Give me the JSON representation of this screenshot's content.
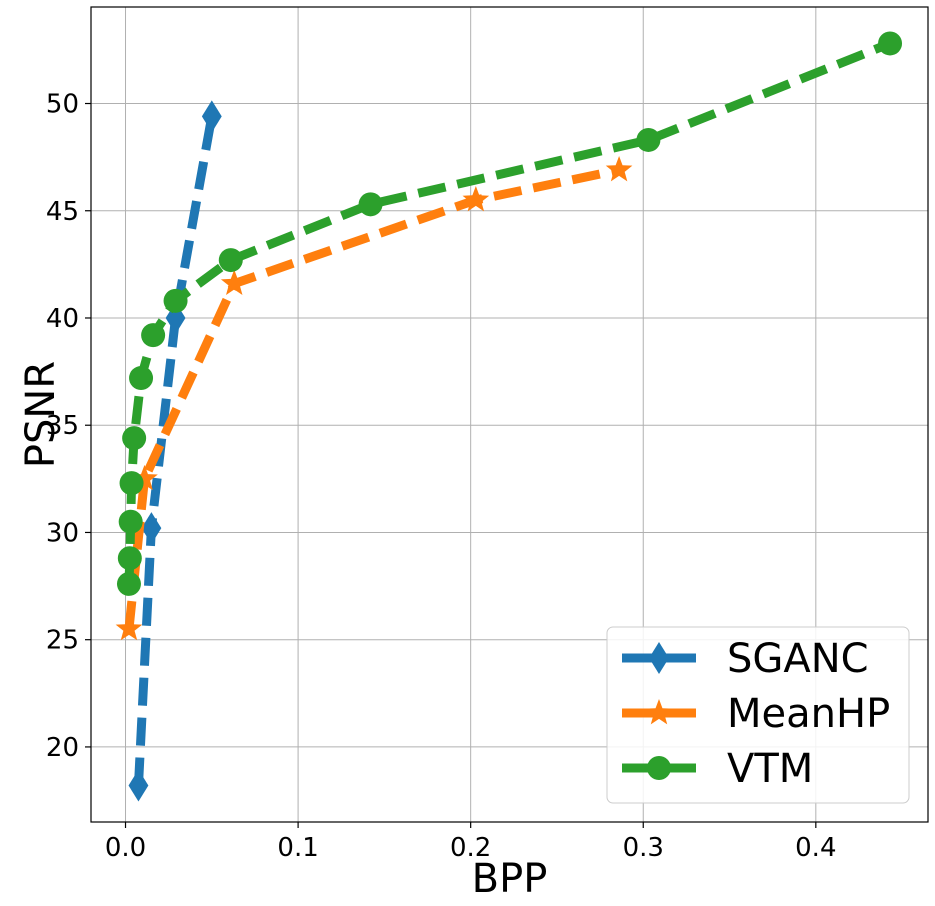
{
  "chart_data": {
    "type": "line",
    "xlabel": "BPP",
    "ylabel": "PSNR",
    "xlim": [
      -0.02,
      0.465
    ],
    "ylim": [
      16.5,
      54.5
    ],
    "xticks": [
      0.0,
      0.1,
      0.2,
      0.3,
      0.4
    ],
    "xtick_labels": [
      "0.0",
      "0.1",
      "0.2",
      "0.3",
      "0.4"
    ],
    "yticks": [
      20,
      25,
      30,
      35,
      40,
      45,
      50
    ],
    "ytick_labels": [
      "20",
      "25",
      "30",
      "35",
      "40",
      "45",
      "50"
    ],
    "grid": true,
    "legend_position": "bottom-right",
    "series": [
      {
        "name": "SGANC",
        "color": "#1f77b4",
        "marker": "diamond",
        "x": [
          0.0075,
          0.015,
          0.029,
          0.05
        ],
        "y": [
          18.2,
          30.2,
          40.0,
          49.4
        ]
      },
      {
        "name": "MeanHP",
        "color": "#ff7f0e",
        "marker": "star",
        "x": [
          0.002,
          0.011,
          0.063,
          0.203,
          0.286
        ],
        "y": [
          25.5,
          32.5,
          41.6,
          45.5,
          46.9
        ]
      },
      {
        "name": "VTM",
        "color": "#2ca02c",
        "marker": "circle",
        "x": [
          0.002,
          0.0025,
          0.003,
          0.0035,
          0.005,
          0.009,
          0.016,
          0.029,
          0.061,
          0.142,
          0.303,
          0.443
        ],
        "y": [
          27.6,
          28.8,
          30.5,
          32.3,
          34.4,
          37.2,
          39.2,
          40.8,
          42.7,
          45.3,
          48.3,
          52.8
        ]
      }
    ]
  }
}
